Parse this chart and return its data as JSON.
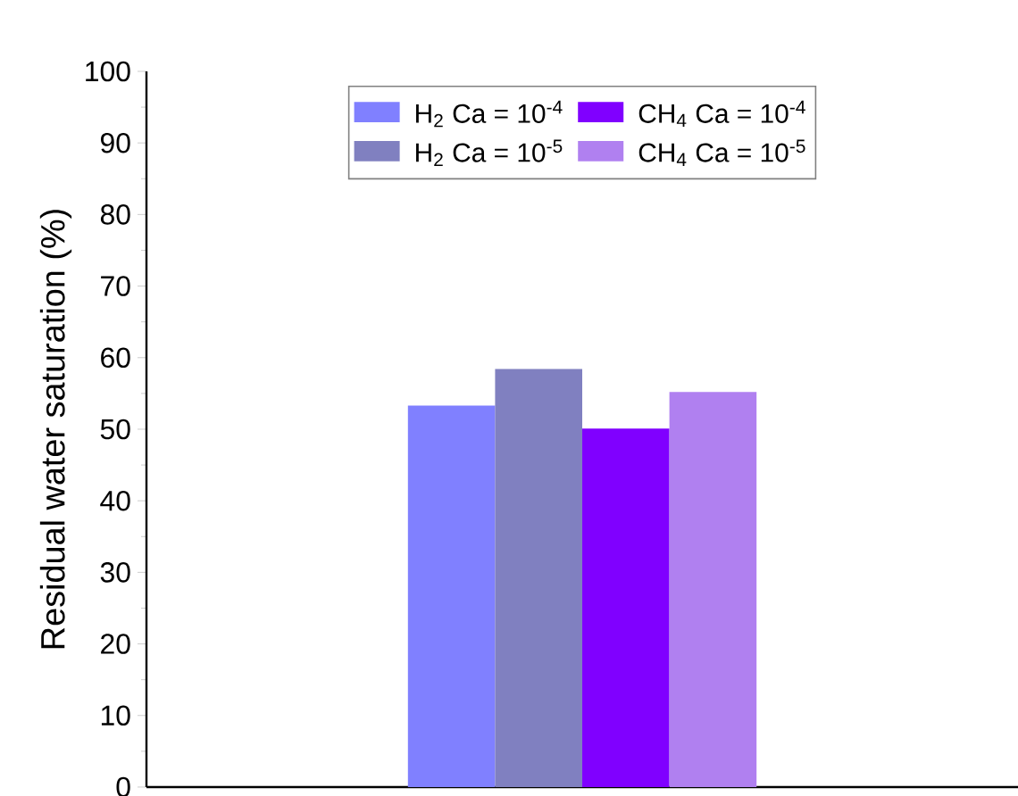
{
  "chart_data": {
    "type": "bar",
    "ylabel": "Residual water saturation (%)",
    "categories": [
      null
    ],
    "series": [
      {
        "name": "H$_{2}$ Ca = 10$^{-4}$",
        "color": "#8080ff",
        "values": [
          53.3
        ]
      },
      {
        "name": "H$_{2}$ Ca = 10$^{-5}$",
        "color": "#8080c0",
        "values": [
          58.4
        ]
      },
      {
        "name": "CH$_{4}$ Ca = 10$^{-4}$",
        "color": "#8000ff",
        "values": [
          50.1
        ]
      },
      {
        "name": "CH$_{4}$ Ca = 10$^{-5}$",
        "color": "#b080f0",
        "values": [
          55.2
        ]
      }
    ],
    "ylim": [
      0,
      100
    ],
    "yticks": [
      0,
      10,
      20,
      30,
      40,
      50,
      60,
      70,
      80,
      90,
      100
    ],
    "tick_labels": "y",
    "legend": "top",
    "grid": false
  }
}
